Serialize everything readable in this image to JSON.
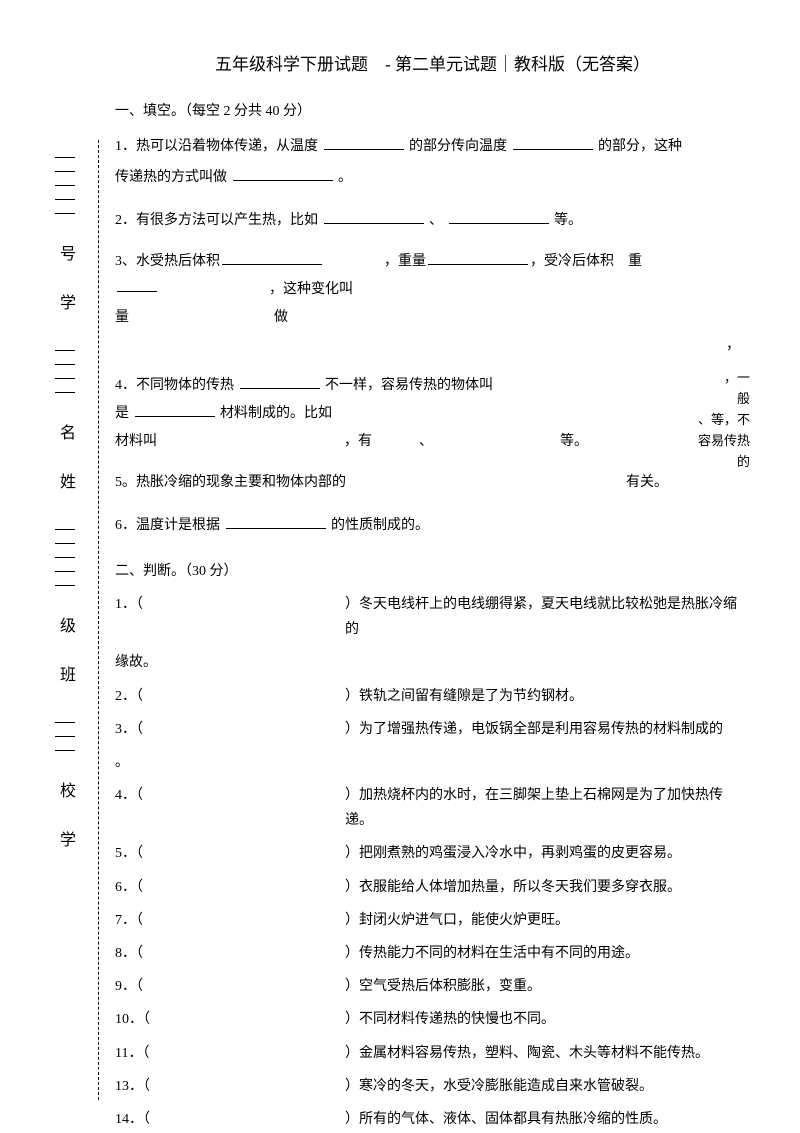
{
  "title": "五年级科学下册试题　- 第二单元试题｜教科版（无答案）",
  "side": {
    "xuehao": "号 学",
    "xingming": "名 姓",
    "banji": "级 班",
    "xuexiao": "校 学"
  },
  "sectionA": {
    "header": "一、填空。（每空 2 分共 40 分）",
    "q1a": "1．热可以沿着物体传递，从温度",
    "q1b": "的部分传向温度",
    "q1c": "的部分，这种",
    "q1d": "传递热的方式叫做",
    "q1e": "。",
    "q2a": "2．有很多方法可以产生热，比如",
    "q2b": "、",
    "q2c": "等。",
    "q3a": "3、水受热后体积",
    "q3b": "，重量",
    "q3c": "，受冷后体积　重",
    "q3d": "，这种变化叫",
    "q3e": "量",
    "q3f": "做",
    "q4a": "4．不同物体的传热",
    "q4b": "不一样，容易传热的物体叫",
    "q4c": "，一",
    "q4d": "般",
    "q4e": "、等，不",
    "q4f": "容易传热",
    "q4g": "是",
    "q4h": "材料制成的。比如",
    "q4i": "的",
    "q4j": "材料叫",
    "q4k": "，有",
    "q4l": "、",
    "q4m": "等。",
    "q5a": "5。热胀冷缩的现象主要和物体内部的",
    "q5b": "有关。",
    "q6a": "6．温度计是根据",
    "q6b": "的性质制成的。"
  },
  "sectionB": {
    "header": "二、判断。（30 分）",
    "items": [
      {
        "num": "1．（",
        "text": "）冬天电线杆上的电线绷得紧，夏天电线就比较松弛是热胀冷缩的"
      },
      {
        "num": "",
        "text": "缘故。",
        "indent": true
      },
      {
        "num": "2．（",
        "text": "）铁轨之间留有缝隙是了为节约钢材。"
      },
      {
        "num": "3．（",
        "text": "）为了增强热传递，电饭锅全部是利用容易传热的材料制成的"
      },
      {
        "num": "",
        "text": "。",
        "indent": true
      },
      {
        "num": "4．（",
        "text": "）加热烧杯内的水时，在三脚架上垫上石棉网是为了加快热传递。"
      },
      {
        "num": "5．（",
        "text": "）把刚煮熟的鸡蛋浸入冷水中，再剥鸡蛋的皮更容易。"
      },
      {
        "num": "6．（",
        "text": "）衣服能给人体增加热量，所以冬天我们要多穿衣服。"
      },
      {
        "num": "7．（",
        "text": "）封闭火炉进气口，能使火炉更旺。"
      },
      {
        "num": "8．（",
        "text": "）传热能力不同的材料在生活中有不同的用途。"
      },
      {
        "num": "9．（",
        "text": "）空气受热后体积膨胀，变重。"
      },
      {
        "num": "10．（",
        "text": "）不同材料传递热的快慢也不同。"
      },
      {
        "num": "11．（",
        "text": "）金属材料容易传热，塑料、陶瓷、木头等材料不能传热。"
      },
      {
        "num": "13．（",
        "text": "）寒冷的冬天，水受冷膨胀能造成自来水管破裂。"
      },
      {
        "num": "14．（",
        "text": "）所有的气体、液体、固体都具有热胀冷缩的性质。"
      }
    ]
  }
}
